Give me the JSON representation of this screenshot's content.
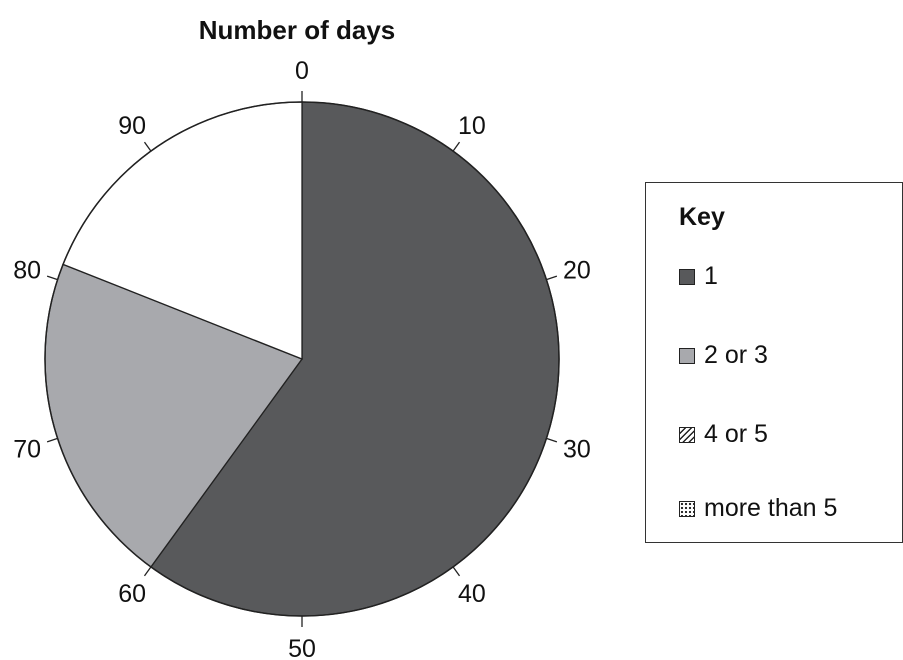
{
  "chart_data": {
    "type": "pie",
    "title": "Number of days",
    "scale": {
      "min": 0,
      "max": 100,
      "tick_labels": [
        "0",
        "10",
        "20",
        "30",
        "40",
        "50",
        "60",
        "70",
        "80",
        "90"
      ]
    },
    "slices": [
      {
        "category": "1",
        "start": 0,
        "end": 60,
        "value": 60
      },
      {
        "category": "2 or 3",
        "start": 60,
        "end": 81,
        "value": 21
      },
      {
        "category": "4 or 5",
        "start": 81,
        "end": 100,
        "value": 19
      }
    ],
    "legend": {
      "title": "Key",
      "position": "right",
      "items": [
        {
          "label": "1",
          "swatch": "solid-dark",
          "color": "#58595b"
        },
        {
          "label": "2 or 3",
          "swatch": "solid-light",
          "color": "#a8a9ad"
        },
        {
          "label": "4 or 5",
          "swatch": "hatched",
          "color": "#ffffff"
        },
        {
          "label": "more than 5",
          "swatch": "dotted",
          "color": "#ffffff"
        }
      ]
    },
    "colors": {
      "1": "#58595b",
      "2 or 3": "#a8a9ad",
      "4 or 5": "#ffffff"
    }
  }
}
